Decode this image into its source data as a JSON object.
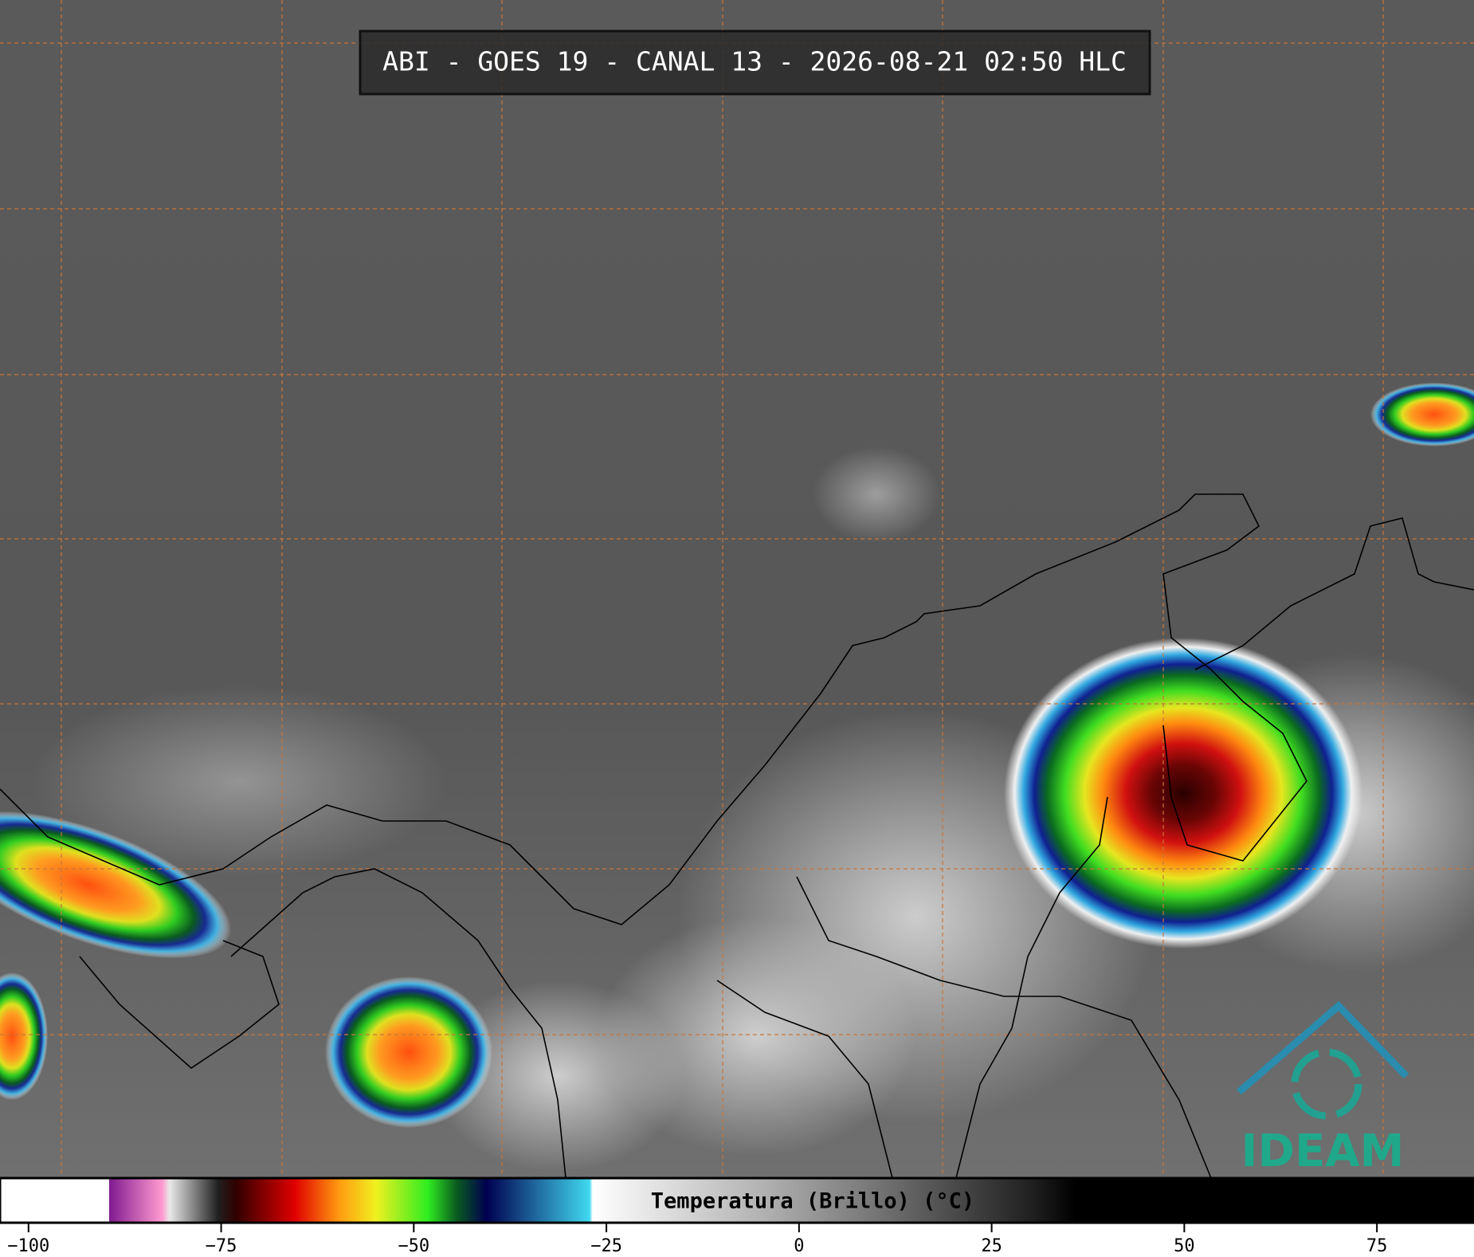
{
  "header": {
    "title": "ABI - GOES 19 - CANAL 13 - 2026-08-21 02:50 HLC"
  },
  "colorbar": {
    "label": "Temperatura (Brillo) (°C)",
    "lim": [
      -103.7,
      87.6
    ],
    "ticks": [
      {
        "value": -100,
        "label": "−100"
      },
      {
        "value": -75,
        "label": "−75"
      },
      {
        "value": -50,
        "label": "−50"
      },
      {
        "value": -25,
        "label": "−25"
      },
      0,
      25,
      50,
      75
    ]
  },
  "logo": {
    "text": "IDEAM"
  }
}
